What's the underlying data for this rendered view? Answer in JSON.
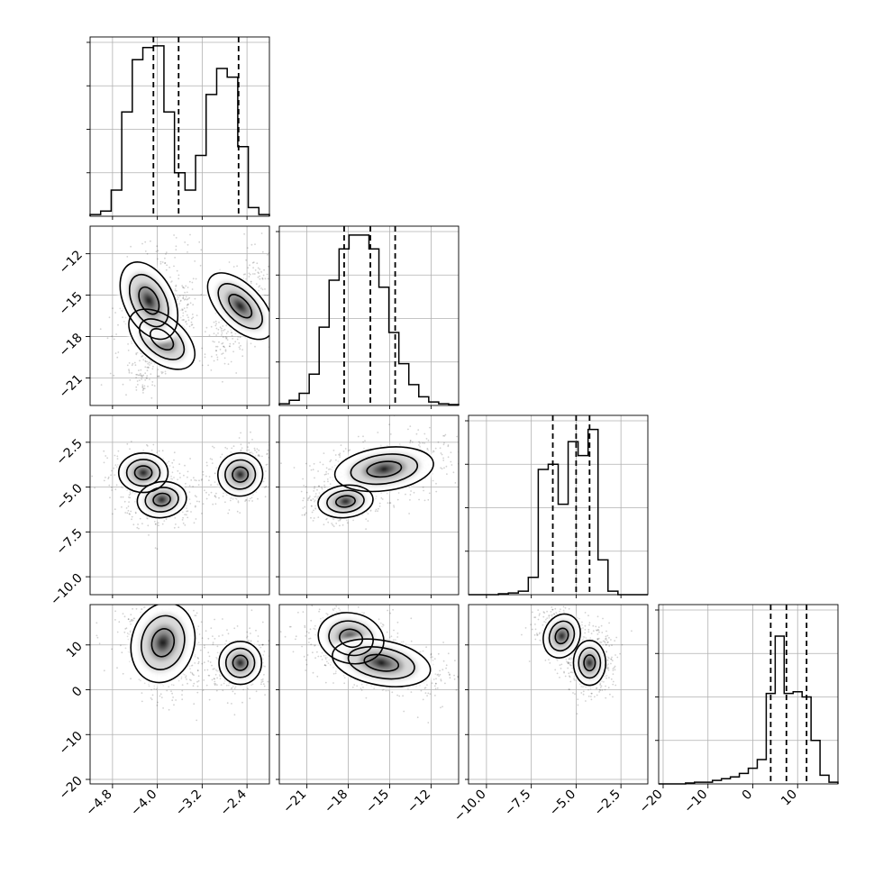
{
  "chart_data": {
    "type": "corner",
    "n_params": 4,
    "colors": {
      "points": "#000000",
      "contour": "#000000",
      "grid": "#b0b0b0"
    },
    "params": [
      {
        "range": [
          -5.2,
          -2.0
        ],
        "ticks": [
          -4.8,
          -4.0,
          -3.2,
          -2.4
        ],
        "tick_labels": [
          "−4.8",
          "−4.0",
          "−3.2",
          "−2.4"
        ],
        "hist_bins": [
          0.01,
          0.03,
          0.15,
          0.6,
          0.9,
          0.97,
          0.98,
          0.6,
          0.25,
          0.15,
          0.35,
          0.7,
          0.85,
          0.8,
          0.4,
          0.05,
          0.01
        ],
        "quantiles": [
          -4.07,
          -3.62,
          -2.55
        ]
      },
      {
        "range": [
          -23.0,
          -10.0
        ],
        "ticks": [
          -21,
          -18,
          -15,
          -12
        ],
        "tick_labels": [
          "−21",
          "−18",
          "−15",
          "−12"
        ],
        "hist_bins": [
          0.01,
          0.03,
          0.07,
          0.18,
          0.45,
          0.72,
          0.9,
          0.98,
          0.98,
          0.9,
          0.68,
          0.42,
          0.24,
          0.12,
          0.05,
          0.02,
          0.01,
          0.005
        ],
        "quantiles": [
          -18.3,
          -16.4,
          -14.6
        ]
      },
      {
        "range": [
          -11.0,
          -1.0
        ],
        "ticks": [
          -10.0,
          -7.5,
          -5.0,
          -2.5
        ],
        "tick_labels": [
          "−10.0",
          "−7.5",
          "−5.0",
          "−2.5"
        ],
        "hist_bins": [
          0.0,
          0.0,
          0.0,
          0.005,
          0.01,
          0.02,
          0.1,
          0.72,
          0.75,
          0.52,
          0.88,
          0.8,
          0.95,
          0.2,
          0.02,
          0.0,
          0.0,
          0.0
        ],
        "quantiles": [
          -6.3,
          -5.0,
          -4.25
        ]
      },
      {
        "range": [
          -21.0,
          19.0
        ],
        "ticks": [
          -20,
          -10,
          0,
          10
        ],
        "tick_labels": [
          "−20",
          "−10",
          "0",
          "10"
        ],
        "hist_bins": [
          0.0,
          0.0,
          0.0,
          0.005,
          0.01,
          0.01,
          0.02,
          0.03,
          0.04,
          0.06,
          0.09,
          0.14,
          0.52,
          0.85,
          0.52,
          0.53,
          0.5,
          0.25,
          0.05,
          0.01
        ],
        "quantiles": [
          4.0,
          7.5,
          12.0
        ]
      }
    ],
    "pairs": [
      {
        "row": 1,
        "col": 0,
        "modes": [
          {
            "x": -3.92,
            "y": -18.2,
            "sx": 0.2,
            "sy": 1.4,
            "rho": 0.7,
            "w": 0.45
          },
          {
            "x": -4.15,
            "y": -15.4,
            "sx": 0.22,
            "sy": 1.5,
            "rho": 0.3,
            "w": 0.3
          },
          {
            "x": -2.52,
            "y": -15.8,
            "sx": 0.19,
            "sy": 1.5,
            "rho": 0.5,
            "w": 0.35
          }
        ]
      },
      {
        "row": 2,
        "col": 0,
        "modes": [
          {
            "x": -4.25,
            "y": -4.2,
            "sx": 0.22,
            "sy": 0.55,
            "rho": 0.0,
            "w": 0.3
          },
          {
            "x": -3.92,
            "y": -5.7,
            "sx": 0.22,
            "sy": 0.5,
            "rho": 0.2,
            "w": 0.35
          },
          {
            "x": -2.52,
            "y": -4.3,
            "sx": 0.2,
            "sy": 0.6,
            "rho": 0.2,
            "w": 0.35
          }
        ]
      },
      {
        "row": 2,
        "col": 1,
        "modes": [
          {
            "x": -15.4,
            "y": -4.0,
            "sx": 1.8,
            "sy": 0.6,
            "rho": 0.3,
            "w": 0.6
          },
          {
            "x": -18.2,
            "y": -5.8,
            "sx": 1.0,
            "sy": 0.45,
            "rho": 0.2,
            "w": 0.4
          }
        ]
      },
      {
        "row": 3,
        "col": 0,
        "modes": [
          {
            "x": -3.9,
            "y": 10.5,
            "sx": 0.28,
            "sy": 4.5,
            "rho": -0.2,
            "w": 0.65
          },
          {
            "x": -2.52,
            "y": 6.0,
            "sx": 0.19,
            "sy": 2.4,
            "rho": 0.0,
            "w": 0.35
          }
        ]
      },
      {
        "row": 3,
        "col": 1,
        "modes": [
          {
            "x": -17.8,
            "y": 11.5,
            "sx": 1.2,
            "sy": 2.8,
            "rho": -0.3,
            "w": 0.4
          },
          {
            "x": -15.6,
            "y": 6.0,
            "sx": 1.8,
            "sy": 2.5,
            "rho": -0.4,
            "w": 0.6
          }
        ]
      },
      {
        "row": 3,
        "col": 2,
        "modes": [
          {
            "x": -5.8,
            "y": 12.0,
            "sx": 0.5,
            "sy": 2.5,
            "rho": -0.3,
            "w": 0.4
          },
          {
            "x": -4.25,
            "y": 6.0,
            "sx": 0.45,
            "sy": 2.5,
            "rho": 0.0,
            "w": 0.6
          }
        ]
      }
    ]
  }
}
